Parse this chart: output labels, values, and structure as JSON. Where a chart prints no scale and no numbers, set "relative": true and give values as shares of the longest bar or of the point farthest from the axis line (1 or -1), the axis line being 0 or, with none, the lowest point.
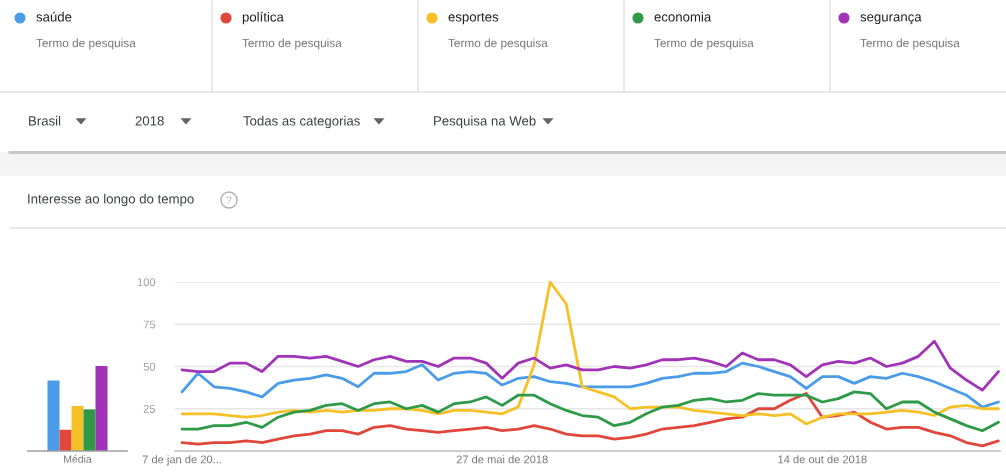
{
  "chart_data": [
    {
      "type": "line",
      "title": "Interesse ao longo do tempo",
      "categories": [
        "7 de jan de 20...",
        null,
        null,
        null,
        null,
        null,
        null,
        null,
        null,
        null,
        null,
        null,
        null,
        null,
        null,
        null,
        null,
        null,
        null,
        null,
        "27 de mai de 2018",
        null,
        null,
        null,
        null,
        null,
        null,
        null,
        null,
        null,
        null,
        null,
        null,
        null,
        null,
        null,
        null,
        null,
        null,
        null,
        "14 de out de 2018",
        null,
        null,
        null,
        null,
        null,
        null,
        null,
        null,
        null,
        null,
        null
      ],
      "series": [
        {
          "name": "saúde",
          "color": "#4a9be8",
          "values": [
            35,
            46,
            38,
            37,
            35,
            32,
            40,
            42,
            43,
            45,
            43,
            38,
            46,
            46,
            47,
            51,
            42,
            46,
            47,
            46,
            39,
            43,
            44,
            41,
            40,
            38,
            38,
            38,
            38,
            40,
            43,
            44,
            46,
            46,
            47,
            52,
            50,
            47,
            44,
            37,
            44,
            44,
            40,
            44,
            43,
            46,
            44,
            41,
            37,
            33,
            26,
            29
          ]
        },
        {
          "name": "política",
          "color": "#e0463a",
          "values": [
            5,
            4,
            5,
            5,
            6,
            5,
            7,
            9,
            10,
            12,
            12,
            10,
            14,
            15,
            13,
            12,
            11,
            12,
            13,
            14,
            12,
            13,
            15,
            13,
            10,
            9,
            9,
            7,
            8,
            10,
            13,
            14,
            15,
            17,
            19,
            20,
            25,
            25,
            30,
            34,
            20,
            21,
            23,
            17,
            13,
            14,
            14,
            11,
            9,
            5,
            3,
            6
          ]
        },
        {
          "name": "esportes",
          "color": "#f6c026",
          "values": [
            22,
            22,
            22,
            21,
            20,
            21,
            23,
            24,
            23,
            24,
            23,
            24,
            24,
            25,
            25,
            24,
            22,
            24,
            24,
            23,
            22,
            26,
            51,
            100,
            87,
            38,
            35,
            32,
            25,
            26,
            26,
            26,
            24,
            23,
            22,
            21,
            22,
            21,
            22,
            16,
            20,
            22,
            22,
            22,
            23,
            24,
            23,
            21,
            26,
            27,
            25,
            25
          ]
        },
        {
          "name": "economia",
          "color": "#2e9a48",
          "values": [
            13,
            13,
            15,
            15,
            17,
            14,
            20,
            23,
            24,
            27,
            28,
            24,
            28,
            29,
            25,
            27,
            23,
            28,
            29,
            32,
            27,
            33,
            33,
            28,
            24,
            21,
            20,
            15,
            17,
            22,
            26,
            27,
            30,
            31,
            29,
            30,
            34,
            33,
            33,
            33,
            29,
            31,
            35,
            34,
            25,
            29,
            29,
            23,
            19,
            15,
            12,
            17
          ]
        },
        {
          "name": "segurança",
          "color": "#a033b6",
          "values": [
            48,
            47,
            47,
            52,
            52,
            47,
            56,
            56,
            55,
            56,
            53,
            50,
            54,
            56,
            53,
            53,
            50,
            55,
            55,
            52,
            43,
            52,
            55,
            49,
            51,
            48,
            48,
            50,
            49,
            51,
            54,
            54,
            55,
            53,
            50,
            58,
            54,
            54,
            51,
            44,
            51,
            53,
            52,
            55,
            50,
            52,
            56,
            65,
            49,
            42,
            36,
            47
          ]
        }
      ],
      "ylim": [
        0,
        100
      ],
      "yticks": [
        25,
        50,
        75,
        100
      ],
      "grid": "y",
      "legend": "top",
      "annotations": [
        "Termo de pesquisa",
        "Termo de pesquisa",
        "Termo de pesquisa",
        "Termo de pesquisa",
        "Termo de pesquisa",
        "Brasil",
        "2018",
        "Todas as categorias",
        "Pesquisa na Web"
      ]
    },
    {
      "type": "bar",
      "relative": true,
      "categories": [
        "Média"
      ],
      "series": [
        {
          "color": "#4a9be8",
          "values": [
            0.83
          ]
        },
        {
          "color": "#e0463a",
          "values": [
            0.25
          ]
        },
        {
          "color": "#f6c026",
          "values": [
            0.53
          ]
        },
        {
          "color": "#2e9a48",
          "values": [
            0.49
          ]
        },
        {
          "color": "#a033b6",
          "values": [
            1
          ]
        }
      ]
    }
  ]
}
